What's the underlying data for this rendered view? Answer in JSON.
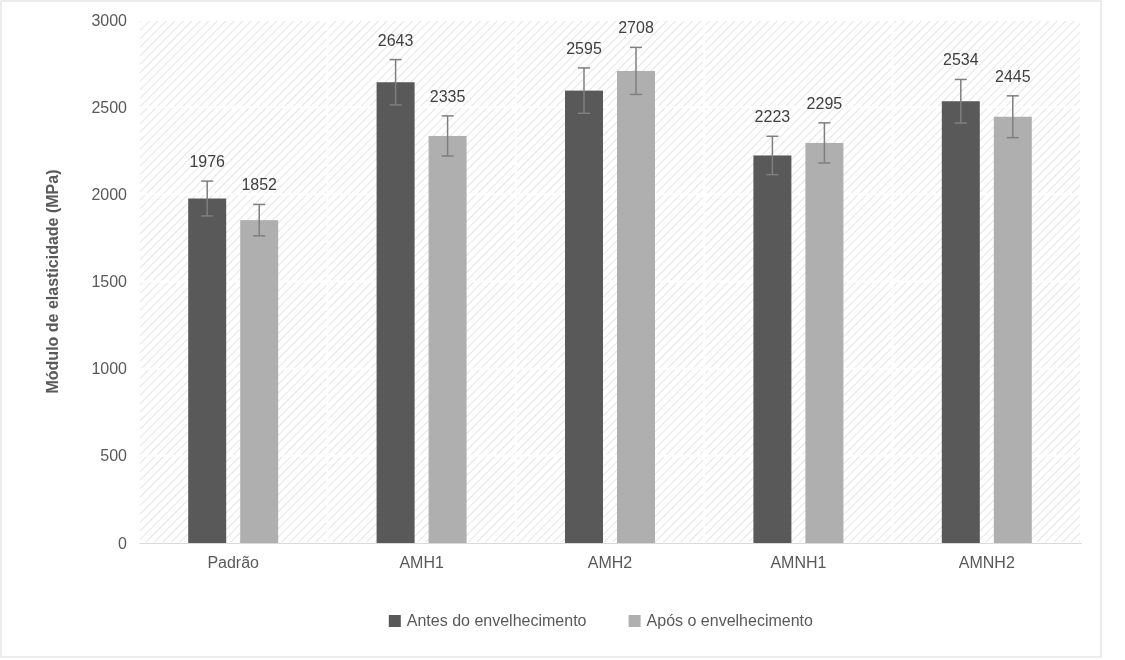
{
  "chart_data": {
    "type": "bar",
    "ylabel": "Módulo de elasticidade (MPa)",
    "categories": [
      "Padrão",
      "AMH1",
      "AMH2",
      "AMNH1",
      "AMNH2"
    ],
    "series": [
      {
        "name": "Antes do envelhecimento",
        "color": "#595959",
        "values": [
          1976,
          2643,
          2595,
          2223,
          2534
        ],
        "errors": [
          100,
          130,
          130,
          110,
          125
        ]
      },
      {
        "name": "Após o envelhecimento",
        "color": "#afafaf",
        "values": [
          1852,
          2335,
          2708,
          2295,
          2445
        ],
        "errors": [
          90,
          115,
          135,
          115,
          120
        ]
      }
    ],
    "ylim": [
      0,
      3000
    ],
    "yticks": [
      0,
      500,
      1000,
      1500,
      2000,
      2500,
      3000
    ],
    "grid": true,
    "legend": "bottom",
    "data_labels": true
  }
}
